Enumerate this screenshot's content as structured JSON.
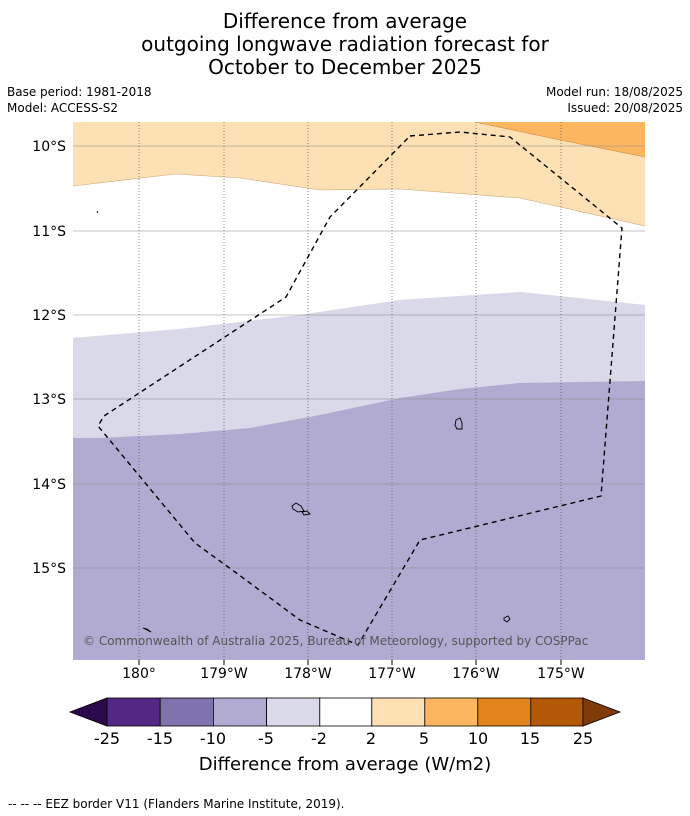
{
  "title_lines": [
    "Difference from average",
    "outgoing longwave radiation forecast for",
    "October to December 2025"
  ],
  "meta": {
    "base_period": "Base period: 1981-2018",
    "model": "Model: ACCESS-S2",
    "model_run": "Model run: 18/08/2025",
    "issued": "Issued: 20/08/2025"
  },
  "map": {
    "lat_labels": [
      "10°S",
      "11°S",
      "12°S",
      "13°S",
      "14°S",
      "15°S"
    ],
    "lon_labels": [
      "180°",
      "179°W",
      "178°W",
      "177°W",
      "176°W",
      "175°W"
    ],
    "copyright": "© Commonwealth of Australia 2025, Bureau of Meteorology, supported by COSPPac",
    "bands": [
      {
        "name": "band-orange-5-10",
        "color": "#fcb660"
      },
      {
        "name": "band-orange-2-5",
        "color": "#fde1b4"
      },
      {
        "name": "band-white-neutral",
        "color": "#ffffff"
      },
      {
        "name": "band-purple-2-5",
        "color": "#d9d9e9"
      },
      {
        "name": "band-purple-5-10",
        "color": "#b2abd1"
      }
    ]
  },
  "colorbar": {
    "label": "Difference from average (W/m2)",
    "ticks": [
      "-25",
      "-15",
      "-10",
      "-5",
      "-2",
      "2",
      "5",
      "10",
      "15",
      "25"
    ],
    "colors": [
      "#552785",
      "#8072ad",
      "#b2abd1",
      "#d9d9e9",
      "#ffffff",
      "#fde1b4",
      "#fcb660",
      "#e1851a",
      "#b35806"
    ],
    "under_color": "#2d0a4d",
    "over_color": "#7f3b08"
  },
  "footer": "--  --  -- EEZ border V11 (Flanders Marine Institute, 2019)."
}
